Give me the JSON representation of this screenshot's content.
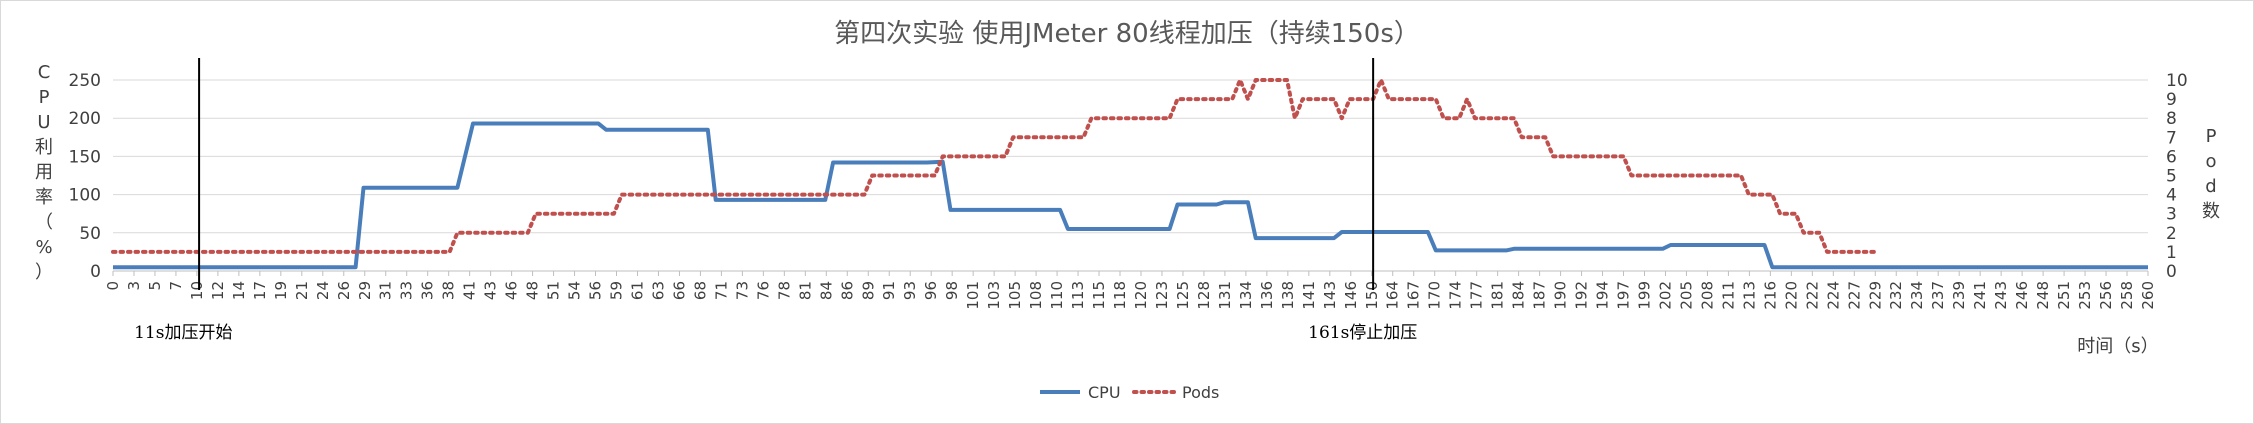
{
  "chart_data": {
    "type": "line",
    "title": "第四次实验 使用JMeter 80线程加压（持续150s）",
    "ylabel_left": [
      "C",
      "P",
      "U",
      "利",
      "用",
      "率",
      "（",
      "%",
      "）"
    ],
    "ylabel_right": [
      "P",
      "o",
      "d",
      "数"
    ],
    "xlabel": "时间（s）",
    "ylim_left": [
      0,
      250
    ],
    "yticks_left": [
      0,
      50,
      100,
      150,
      200,
      250
    ],
    "ylim_right": [
      0,
      10
    ],
    "yticks_right": [
      0,
      1,
      2,
      3,
      4,
      5,
      6,
      7,
      8,
      9,
      10
    ],
    "xlim": [
      0,
      260
    ],
    "x_ticks": [
      0,
      3,
      5,
      7,
      10,
      12,
      14,
      17,
      19,
      21,
      24,
      26,
      29,
      31,
      33,
      36,
      38,
      41,
      43,
      46,
      48,
      51,
      54,
      56,
      59,
      61,
      63,
      66,
      68,
      71,
      73,
      76,
      78,
      81,
      84,
      86,
      89,
      91,
      93,
      96,
      98,
      101,
      103,
      105,
      108,
      110,
      113,
      115,
      118,
      120,
      123,
      125,
      128,
      131,
      134,
      136,
      138,
      141,
      143,
      146,
      150,
      164,
      167,
      170,
      174,
      177,
      181,
      184,
      187,
      190,
      192,
      194,
      197,
      199,
      202,
      205,
      208,
      211,
      213,
      216,
      220,
      222,
      224,
      227,
      229,
      232,
      234,
      237,
      239,
      241,
      243,
      246,
      248,
      251,
      253,
      256,
      258,
      260
    ],
    "grid": "horizontal",
    "legend": "bottom",
    "series": [
      {
        "name": "CPU",
        "color": "#4a7ebb",
        "axis": "left",
        "points": [
          [
            0,
            5
          ],
          [
            31,
            5
          ],
          [
            32,
            109
          ],
          [
            44,
            109
          ],
          [
            46,
            193
          ],
          [
            62,
            193
          ],
          [
            63,
            185
          ],
          [
            76,
            185
          ],
          [
            77,
            93
          ],
          [
            91,
            93
          ],
          [
            92,
            142
          ],
          [
            104,
            142
          ],
          [
            106,
            143
          ],
          [
            107,
            80
          ],
          [
            121,
            80
          ],
          [
            122,
            55
          ],
          [
            135,
            55
          ],
          [
            136,
            87
          ],
          [
            141,
            87
          ],
          [
            142,
            90
          ],
          [
            145,
            90
          ],
          [
            146,
            43
          ],
          [
            156,
            43
          ],
          [
            157,
            51
          ],
          [
            168,
            51
          ],
          [
            169,
            27
          ],
          [
            178,
            27
          ],
          [
            179,
            29
          ],
          [
            198,
            29
          ],
          [
            199,
            34
          ],
          [
            211,
            34
          ],
          [
            212,
            5
          ],
          [
            260,
            5
          ]
        ]
      },
      {
        "name": "Pods",
        "color": "#c0504d",
        "axis": "right",
        "points": [
          [
            0,
            1
          ],
          [
            43,
            1
          ],
          [
            44,
            2
          ],
          [
            53,
            2
          ],
          [
            54,
            3
          ],
          [
            64,
            3
          ],
          [
            65,
            4
          ],
          [
            96,
            4
          ],
          [
            97,
            5
          ],
          [
            105,
            5
          ],
          [
            106,
            6
          ],
          [
            114,
            6
          ],
          [
            115,
            7
          ],
          [
            124,
            7
          ],
          [
            125,
            8
          ],
          [
            135,
            8
          ],
          [
            136,
            9
          ],
          [
            143,
            9
          ],
          [
            144,
            10
          ],
          [
            145,
            9
          ],
          [
            146,
            10
          ],
          [
            150,
            10
          ],
          [
            151,
            8
          ],
          [
            152,
            9
          ],
          [
            156,
            9
          ],
          [
            157,
            8
          ],
          [
            158,
            9
          ],
          [
            161,
            9
          ],
          [
            162,
            10
          ],
          [
            163,
            9
          ],
          [
            169,
            9
          ],
          [
            170,
            8
          ],
          [
            172,
            8
          ],
          [
            173,
            9
          ],
          [
            174,
            8
          ],
          [
            179,
            8
          ],
          [
            180,
            7
          ],
          [
            183,
            7
          ],
          [
            184,
            6
          ],
          [
            193,
            6
          ],
          [
            194,
            5
          ],
          [
            208,
            5
          ],
          [
            209,
            4
          ],
          [
            212,
            4
          ],
          [
            213,
            3
          ],
          [
            215,
            3
          ],
          [
            216,
            2
          ],
          [
            218,
            2
          ],
          [
            219,
            1
          ],
          [
            225,
            1
          ]
        ]
      }
    ],
    "annotations": [
      {
        "x": 11,
        "text": "11s加压开始"
      },
      {
        "x": 161,
        "text": "161s停止加压"
      }
    ]
  }
}
